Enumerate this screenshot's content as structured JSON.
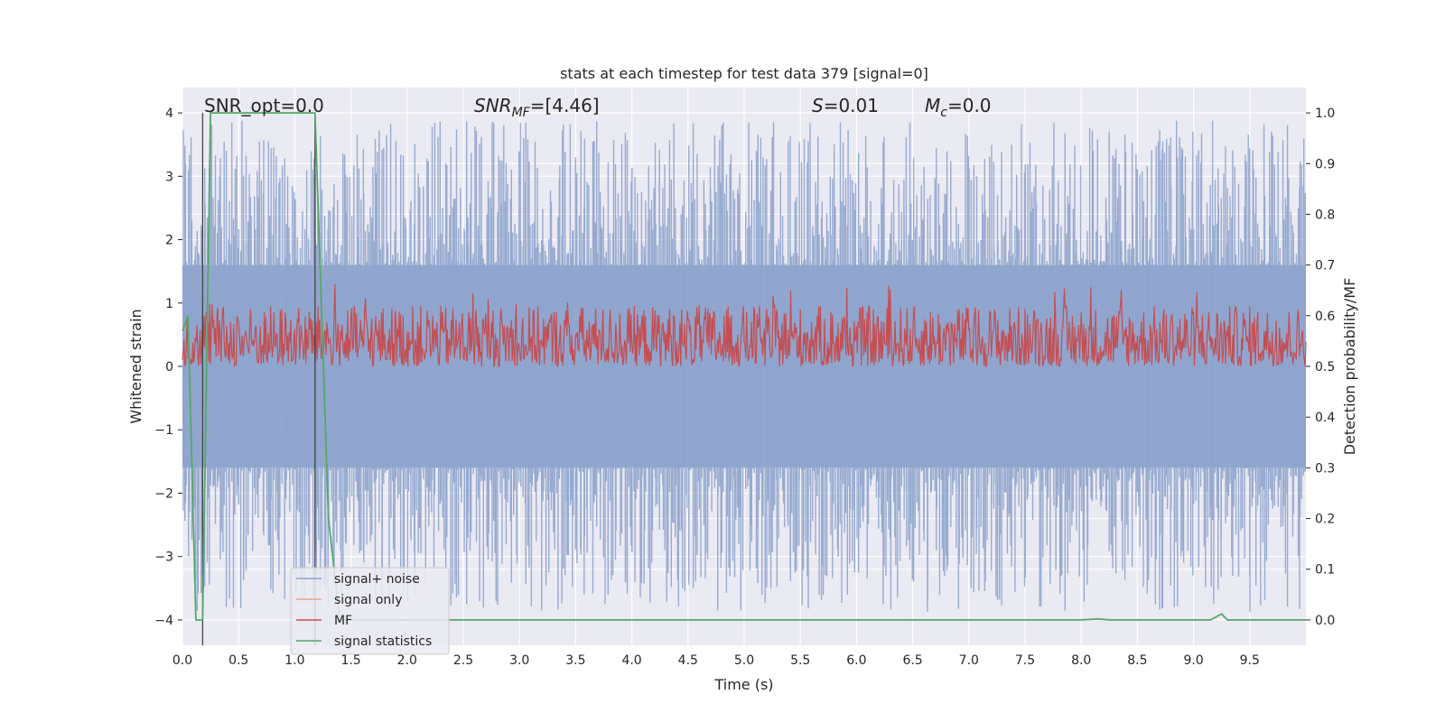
{
  "chart_data": {
    "type": "line",
    "title": "stats at each timestep for test data 379 [signal=0]",
    "xlabel": "Time (s)",
    "ylabel": "Whitened strain",
    "y2label": "Detection probability/MF",
    "xlim": [
      0.0,
      10.0
    ],
    "ylim": [
      -4.4,
      4.4
    ],
    "y2lim": [
      -0.05,
      1.05
    ],
    "x_ticks": [
      "0.0",
      "0.5",
      "1.0",
      "1.5",
      "2.0",
      "2.5",
      "3.0",
      "3.5",
      "4.0",
      "4.5",
      "5.0",
      "5.5",
      "6.0",
      "6.5",
      "7.0",
      "7.5",
      "8.0",
      "8.5",
      "9.0",
      "9.5"
    ],
    "y_ticks": [
      "4",
      "3",
      "2",
      "1",
      "0",
      "−1",
      "−2",
      "−3",
      "−4"
    ],
    "y2_ticks": [
      "1.0",
      "0.9",
      "0.8",
      "0.7",
      "0.6",
      "0.5",
      "0.4",
      "0.3",
      "0.2",
      "0.1",
      "0.0"
    ],
    "grid": true,
    "legend_position": "lower-left",
    "annotations": {
      "snr_opt": "SNR_opt=0.0",
      "snr_mf_prefix": "SNR",
      "snr_mf_sub": "MF",
      "snr_mf_value": "=[4.46]",
      "s_symbol": "S",
      "s_value": "=0.01",
      "mc_symbol": "M",
      "mc_sub": "c",
      "mc_value": "=0.0"
    },
    "series": [
      {
        "name": "signal+ noise",
        "color": "#8fa4cc",
        "description_axis": "left",
        "envelope_upper": 1.6,
        "envelope_lower": -1.6,
        "peak_range": [
          2.0,
          4.0
        ]
      },
      {
        "name": "signal only",
        "color": "#e8a58a",
        "description_axis": "left"
      },
      {
        "name": "MF",
        "color": "#c44e52",
        "description_axis": "right",
        "band": [
          0.5,
          0.62
        ]
      },
      {
        "name": "signal statistics",
        "color": "#55a868",
        "description_axis": "right",
        "x": [
          0.0,
          0.05,
          0.12,
          0.18,
          0.25,
          1.0,
          1.18,
          1.3,
          1.4,
          8.0,
          8.15,
          8.25,
          9.15,
          9.25,
          9.3,
          10.0
        ],
        "y": [
          0.57,
          0.6,
          0.0,
          0.0,
          1.0,
          1.0,
          1.0,
          0.2,
          0.0,
          0.0,
          0.002,
          0.0,
          0.0,
          0.012,
          0.0,
          0.0
        ]
      }
    ],
    "vertical_markers": [
      0.18,
      1.18
    ]
  }
}
